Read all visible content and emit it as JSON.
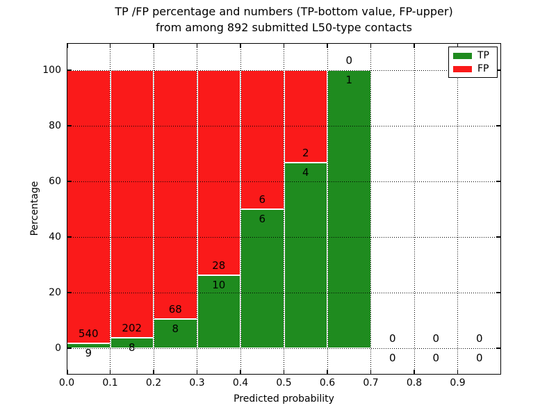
{
  "figure": {
    "title_line1": "TP /FP percentage and numbers (TP-bottom value, FP-upper)",
    "title_line2": "from among 892 submitted L50-type contacts",
    "xlabel": "Predicted probability",
    "ylabel": "Percentage"
  },
  "legend": {
    "items": [
      {
        "label": "TP",
        "color": "#1f8b1f"
      },
      {
        "label": "FP",
        "color": "#fa1a1a"
      }
    ]
  },
  "chart_data": {
    "type": "bar",
    "stacked": true,
    "normalized": "each bin scaled to 100% (TP% bottom green, FP% upper red)",
    "title": "TP /FP percentage and numbers (TP-bottom value, FP-upper) from among 892 submitted L50-type contacts",
    "xlabel": "Predicted probability",
    "ylabel": "Percentage",
    "total_contacts": 892,
    "x_tick_labels": [
      "0.0",
      "0.1",
      "0.2",
      "0.3",
      "0.4",
      "0.5",
      "0.6",
      "0.7",
      "0.8",
      "0.9"
    ],
    "y_ticks": [
      0,
      20,
      40,
      60,
      80,
      100
    ],
    "xlim": [
      0.0,
      1.0
    ],
    "ylim": [
      -9.75,
      109.5
    ],
    "grid": "dotted black, on top of bars",
    "legend_position": "upper right",
    "colors": {
      "tp": "#1f8b1f",
      "fp": "#fa1a1a",
      "bar_edge": "#ffffff"
    },
    "bins": [
      {
        "x_start": 0.0,
        "x_end": 0.1,
        "tp": 9,
        "fp": 540
      },
      {
        "x_start": 0.1,
        "x_end": 0.2,
        "tp": 8,
        "fp": 202
      },
      {
        "x_start": 0.2,
        "x_end": 0.3,
        "tp": 8,
        "fp": 68
      },
      {
        "x_start": 0.3,
        "x_end": 0.4,
        "tp": 10,
        "fp": 28
      },
      {
        "x_start": 0.4,
        "x_end": 0.5,
        "tp": 6,
        "fp": 6
      },
      {
        "x_start": 0.5,
        "x_end": 0.6,
        "tp": 4,
        "fp": 2
      },
      {
        "x_start": 0.6,
        "x_end": 0.7,
        "tp": 1,
        "fp": 0
      },
      {
        "x_start": 0.7,
        "x_end": 0.8,
        "tp": 0,
        "fp": 0
      },
      {
        "x_start": 0.8,
        "x_end": 0.9,
        "tp": 0,
        "fp": 0
      },
      {
        "x_start": 0.9,
        "x_end": 1.0,
        "tp": 0,
        "fp": 0
      }
    ]
  }
}
